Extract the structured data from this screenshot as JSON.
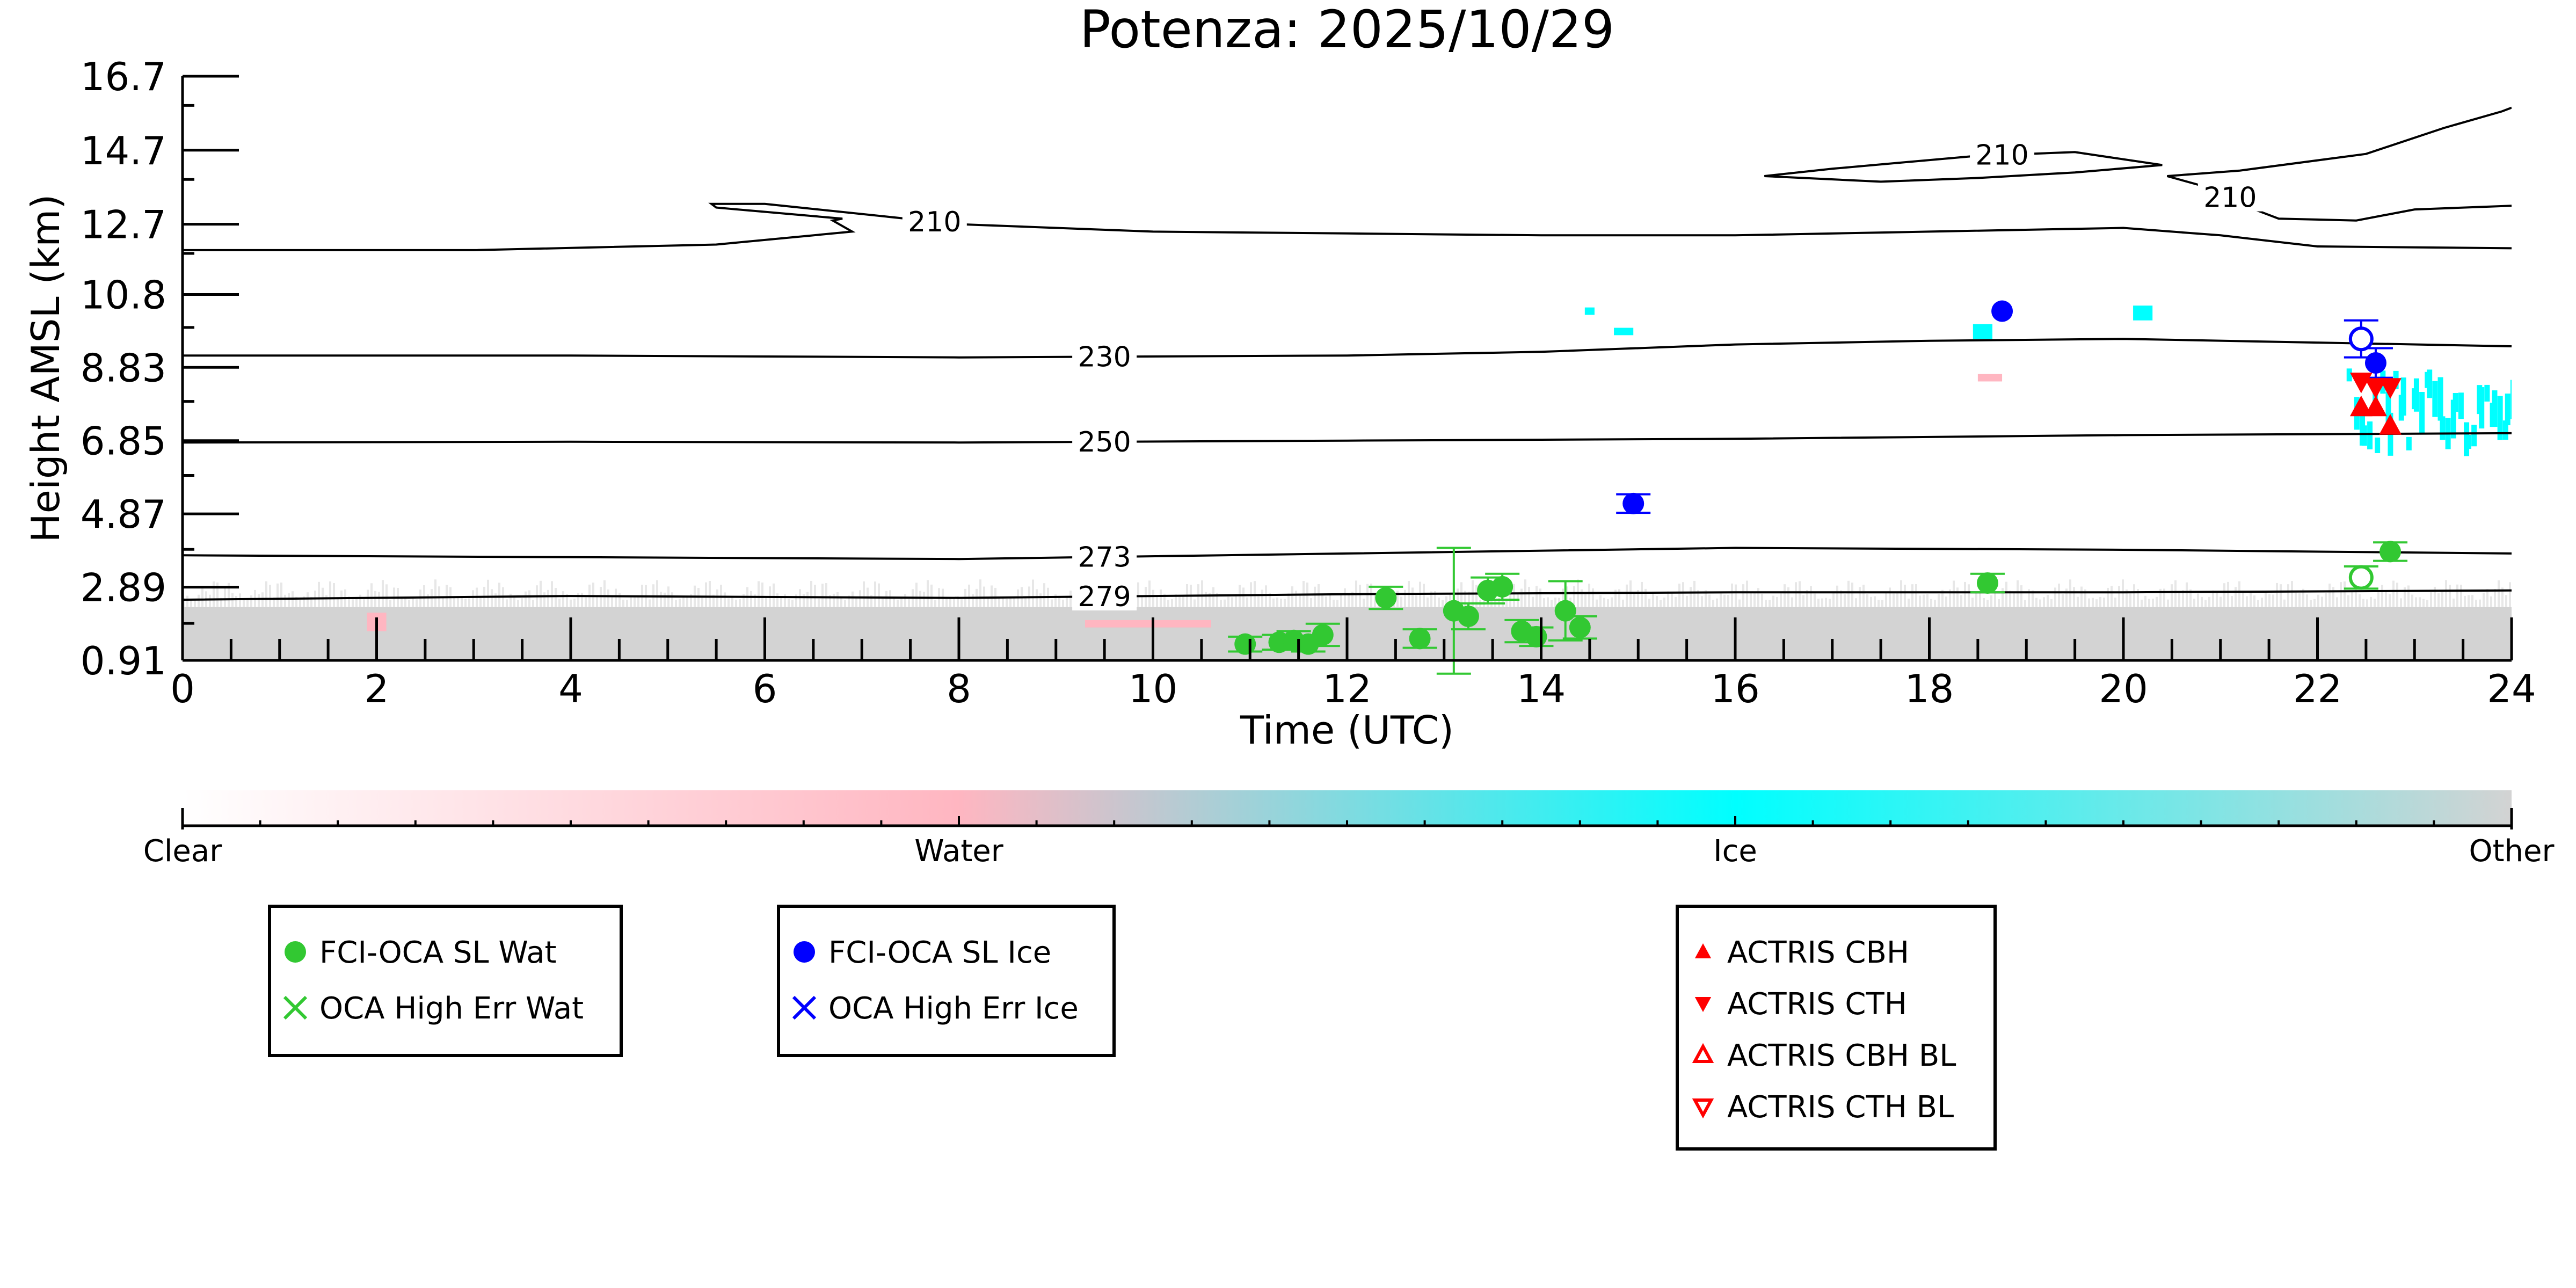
{
  "chart_data": {
    "type": "scatter",
    "title": "Potenza: 2025/10/29",
    "xlabel": "Time (UTC)",
    "ylabel": "Height AMSL (km)",
    "xlim": [
      0,
      24
    ],
    "ylim": [
      0.91,
      16.7
    ],
    "x_ticks": [
      0,
      2,
      4,
      6,
      8,
      10,
      12,
      14,
      16,
      18,
      20,
      22,
      24
    ],
    "y_ticks": [
      0.91,
      2.89,
      4.87,
      6.85,
      8.83,
      10.8,
      12.7,
      14.7,
      16.7
    ],
    "y_tick_labels": [
      "0.91",
      "2.89",
      "4.87",
      "6.85",
      "8.83",
      "10.8",
      "12.7",
      "14.7",
      "16.7"
    ],
    "colorbar": {
      "labels": [
        "Clear",
        "Water",
        "Ice",
        "Other"
      ],
      "colors": [
        "#ffffff",
        "#ffb6c1",
        "#00ffff",
        "#d3d3d3"
      ]
    },
    "contours": [
      {
        "label": "279",
        "label_x": 9.5,
        "points": [
          [
            0,
            2.55
          ],
          [
            4,
            2.65
          ],
          [
            8,
            2.6
          ],
          [
            12,
            2.7
          ],
          [
            16,
            2.75
          ],
          [
            20,
            2.75
          ],
          [
            24,
            2.8
          ]
        ]
      },
      {
        "label": "273",
        "label_x": 9.5,
        "points": [
          [
            0,
            3.75
          ],
          [
            4,
            3.7
          ],
          [
            8,
            3.65
          ],
          [
            12,
            3.8
          ],
          [
            16,
            3.95
          ],
          [
            20,
            3.9
          ],
          [
            24,
            3.8
          ]
        ]
      },
      {
        "label": "250",
        "label_x": 9.5,
        "points": [
          [
            0,
            6.8
          ],
          [
            4,
            6.82
          ],
          [
            8,
            6.8
          ],
          [
            12,
            6.85
          ],
          [
            16,
            6.9
          ],
          [
            20,
            7.0
          ],
          [
            24,
            7.05
          ]
        ]
      },
      {
        "label": "230",
        "label_x": 9.5,
        "points": [
          [
            0,
            9.15
          ],
          [
            4,
            9.15
          ],
          [
            8,
            9.1
          ],
          [
            12,
            9.15
          ],
          [
            14,
            9.25
          ],
          [
            16,
            9.45
          ],
          [
            18,
            9.55
          ],
          [
            20,
            9.6
          ],
          [
            22,
            9.5
          ],
          [
            24,
            9.4
          ]
        ]
      },
      {
        "label": "210",
        "label_x": 7.75,
        "points": [
          [
            0,
            12.0
          ],
          [
            3,
            12.0
          ],
          [
            5.5,
            12.15
          ],
          [
            6.9,
            12.5
          ],
          [
            6.7,
            12.8
          ],
          [
            6.8,
            12.85
          ],
          [
            5.5,
            13.15
          ],
          [
            5.45,
            13.25
          ],
          [
            6.0,
            13.25
          ],
          [
            8,
            12.7
          ],
          [
            10,
            12.5
          ],
          [
            12,
            12.45
          ],
          [
            14,
            12.4
          ],
          [
            16,
            12.4
          ],
          [
            18,
            12.5
          ],
          [
            20,
            12.6
          ],
          [
            21,
            12.4
          ],
          [
            22,
            12.1
          ],
          [
            24,
            12.05
          ]
        ]
      },
      {
        "label": "210",
        "label_x": 18.75,
        "points": [
          [
            16.3,
            14.0
          ],
          [
            17.0,
            14.2
          ],
          [
            18.5,
            14.55
          ],
          [
            19.5,
            14.65
          ],
          [
            20.4,
            14.3
          ],
          [
            19.5,
            14.1
          ],
          [
            18.5,
            13.95
          ],
          [
            17.5,
            13.85
          ],
          [
            16.3,
            14.0
          ]
        ]
      },
      {
        "label": "210",
        "label_x": 21.1,
        "points": [
          [
            20.45,
            14.0
          ],
          [
            21.0,
            13.6
          ],
          [
            21.2,
            13.25
          ],
          [
            21.6,
            12.85
          ],
          [
            22.4,
            12.8
          ],
          [
            23.0,
            13.1
          ],
          [
            24,
            13.2
          ]
        ],
        "upper": [
          [
            20.45,
            14.0
          ],
          [
            21.2,
            14.15
          ],
          [
            22.5,
            14.6
          ],
          [
            23.3,
            15.3
          ],
          [
            23.9,
            15.75
          ],
          [
            24,
            15.85
          ]
        ]
      }
    ],
    "series": [
      {
        "name": "FCI-OCA SL Wat",
        "color": "#32c832",
        "marker": "filled-circle",
        "points": [
          {
            "x": 10.95,
            "y": 1.35,
            "err": 0.2
          },
          {
            "x": 11.3,
            "y": 1.4,
            "err": 0.2
          },
          {
            "x": 11.45,
            "y": 1.45,
            "err": 0.25
          },
          {
            "x": 11.6,
            "y": 1.35,
            "err": 0.2
          },
          {
            "x": 11.75,
            "y": 1.6,
            "err": 0.3
          },
          {
            "x": 12.4,
            "y": 2.6,
            "err": 0.3
          },
          {
            "x": 12.75,
            "y": 1.5,
            "err": 0.25
          },
          {
            "x": 13.1,
            "y": 2.25,
            "err": 1.7
          },
          {
            "x": 13.25,
            "y": 2.1,
            "err": 0.35
          },
          {
            "x": 13.45,
            "y": 2.8,
            "err": 0.35
          },
          {
            "x": 13.6,
            "y": 2.9,
            "err": 0.35
          },
          {
            "x": 13.8,
            "y": 1.7,
            "err": 0.3
          },
          {
            "x": 13.95,
            "y": 1.55,
            "err": 0.25
          },
          {
            "x": 14.25,
            "y": 2.25,
            "err": 0.8
          },
          {
            "x": 14.4,
            "y": 1.8,
            "err": 0.3
          },
          {
            "x": 18.6,
            "y": 3.0,
            "err": 0.25
          },
          {
            "x": 22.75,
            "y": 3.85,
            "err": 0.25
          }
        ]
      },
      {
        "name": "OCA High Err Wat",
        "color": "#32c832",
        "marker": "x",
        "points": [
          {
            "x": 22.45,
            "y": 3.15,
            "err": 0.3,
            "hollow": true
          }
        ]
      },
      {
        "name": "FCI-OCA SL Ice",
        "color": "#0000ff",
        "marker": "filled-circle",
        "points": [
          {
            "x": 14.95,
            "y": 5.15,
            "err": 0.25
          },
          {
            "x": 18.75,
            "y": 10.35,
            "err": 0.0
          },
          {
            "x": 22.6,
            "y": 8.95,
            "err": 0.4
          }
        ]
      },
      {
        "name": "OCA High Err Ice",
        "color": "#0000ff",
        "marker": "x",
        "points": [
          {
            "x": 22.45,
            "y": 9.6,
            "err": 0.5,
            "hollow": true
          }
        ]
      },
      {
        "name": "ACTRIS CBH",
        "color": "#ff0000",
        "marker": "triangle-up",
        "points": [
          {
            "x": 22.45,
            "y": 7.75
          },
          {
            "x": 22.6,
            "y": 7.75
          },
          {
            "x": 22.75,
            "y": 7.25
          }
        ]
      },
      {
        "name": "ACTRIS CTH",
        "color": "#ff0000",
        "marker": "triangle-down",
        "points": [
          {
            "x": 22.45,
            "y": 8.45
          },
          {
            "x": 22.6,
            "y": 8.3
          },
          {
            "x": 22.75,
            "y": 8.3
          }
        ]
      },
      {
        "name": "ACTRIS CBH BL",
        "color": "#ff0000",
        "marker": "hollow-triangle-up",
        "points": []
      },
      {
        "name": "ACTRIS CTH BL",
        "color": "#ff0000",
        "marker": "hollow-triangle-down",
        "points": []
      }
    ],
    "legend_groups": [
      [
        "FCI-OCA SL Wat",
        "OCA High Err Wat"
      ],
      [
        "FCI-OCA SL Ice",
        "OCA High Err Ice"
      ],
      [
        "ACTRIS CBH",
        "ACTRIS CTH",
        "ACTRIS CBH BL",
        "ACTRIS CTH BL"
      ]
    ],
    "background_layers": [
      {
        "class": "Other",
        "x_range": [
          0,
          24
        ],
        "y_range": [
          0.91,
          2.35
        ]
      },
      {
        "class": "Other",
        "x_range": [
          0,
          24
        ],
        "y_range": [
          2.35,
          3.1
        ],
        "sparse": true
      },
      {
        "class": "Water",
        "x_range": [
          1.9,
          2.1
        ],
        "y_range": [
          1.7,
          2.2
        ]
      },
      {
        "class": "Water",
        "x_range": [
          9.3,
          10.6
        ],
        "y_range": [
          1.8,
          2.0
        ]
      },
      {
        "class": "Ice",
        "x_range": [
          22.3,
          24
        ],
        "y_range": [
          6.4,
          8.8
        ]
      },
      {
        "class": "Ice",
        "x_range": [
          18.45,
          18.65
        ],
        "y_range": [
          9.6,
          10.0
        ]
      },
      {
        "class": "Ice",
        "x_range": [
          14.45,
          14.55
        ],
        "y_range": [
          10.25,
          10.45
        ]
      },
      {
        "class": "Ice",
        "x_range": [
          20.1,
          20.3
        ],
        "y_range": [
          10.1,
          10.5
        ]
      },
      {
        "class": "Ice",
        "x_range": [
          14.75,
          14.95
        ],
        "y_range": [
          9.7,
          9.9
        ]
      },
      {
        "class": "Water",
        "x_range": [
          18.5,
          18.75
        ],
        "y_range": [
          8.45,
          8.65
        ]
      }
    ]
  }
}
